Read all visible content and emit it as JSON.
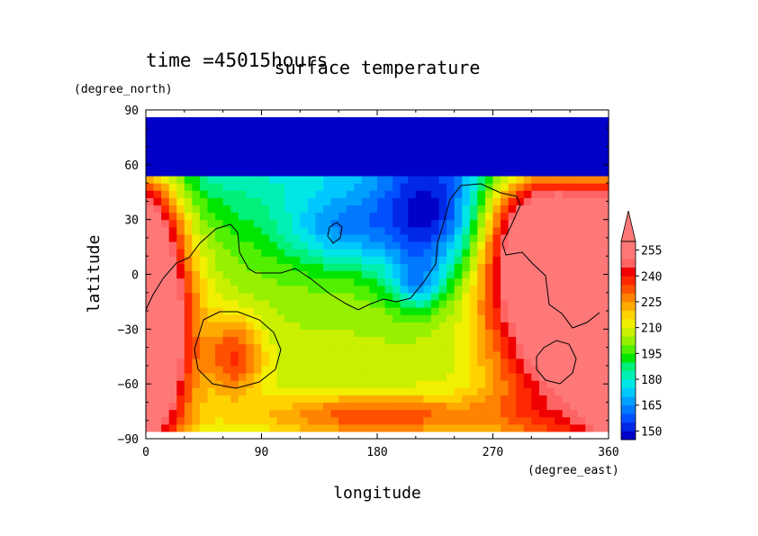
{
  "time_label": "time =45015hours",
  "chart_data": {
    "type": "heatmap",
    "title": "surface temperature",
    "xlabel": "longitude",
    "ylabel": "latitude",
    "x_unit": "(degree_east)",
    "y_unit": "(degree_north)",
    "xlim": [
      0,
      360
    ],
    "ylim": [
      -90,
      90
    ],
    "x_ticks": [
      0,
      90,
      180,
      270,
      360
    ],
    "x_tick_labels": [
      "0",
      "90",
      "180",
      "270",
      "360"
    ],
    "y_ticks": [
      90,
      60,
      30,
      0,
      -30,
      -60,
      -90
    ],
    "y_tick_labels": [
      "90",
      "60",
      "30",
      "0",
      "−30",
      "−60",
      "−90"
    ],
    "colorbar": {
      "levels": [
        145,
        150,
        155,
        160,
        165,
        170,
        175,
        180,
        185,
        190,
        195,
        200,
        205,
        210,
        215,
        220,
        225,
        230,
        235,
        240,
        245,
        250,
        255,
        260
      ],
      "tick_values": [
        150,
        165,
        180,
        195,
        210,
        225,
        240,
        255
      ],
      "tick_labels": [
        "150",
        "165",
        "180",
        "195",
        "210",
        "225",
        "240",
        "255"
      ],
      "colors": [
        "#0000c8",
        "#0028e6",
        "#0050ff",
        "#0078ff",
        "#00a0ff",
        "#00c8ff",
        "#00e6e6",
        "#00f0b4",
        "#00f078",
        "#00e600",
        "#50f000",
        "#96f000",
        "#c8f000",
        "#f0f000",
        "#ffd200",
        "#ffaa00",
        "#ff8200",
        "#ff5000",
        "#ff2800",
        "#f00000",
        "#ff6464",
        "#ff7878"
      ],
      "extend_max": true
    }
  }
}
